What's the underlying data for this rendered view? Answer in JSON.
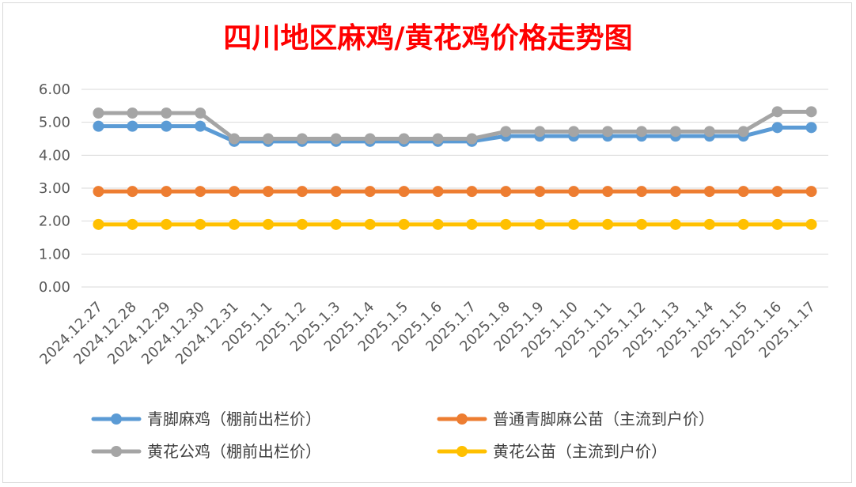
{
  "chart_data": {
    "type": "line",
    "title": "四川地区麻鸡/黄花鸡价格走势图",
    "title_color": "#ff0000",
    "categories": [
      "2024.12.27",
      "2024.12.28",
      "2024.12.29",
      "2024.12.30",
      "2024.12.31",
      "2025.1.1",
      "2025.1.2",
      "2025.1.3",
      "2025.1.4",
      "2025.1.5",
      "2025.1.6",
      "2025.1.7",
      "2025.1.8",
      "2025.1.9",
      "2025.1.10",
      "2025.1.11",
      "2025.1.12",
      "2025.1.13",
      "2025.1.14",
      "2025.1.15",
      "2025.1.16",
      "2025.1.17"
    ],
    "y_ticks": [
      "0.00",
      "1.00",
      "2.00",
      "3.00",
      "4.00",
      "5.00",
      "6.00"
    ],
    "ylim": [
      0,
      6
    ],
    "grid": true,
    "legend_position": "bottom",
    "series": [
      {
        "name": "青脚麻鸡（棚前出栏价）",
        "color": "#5b9bd5",
        "values": [
          4.88,
          4.88,
          4.88,
          4.88,
          4.42,
          4.42,
          4.42,
          4.42,
          4.42,
          4.42,
          4.42,
          4.42,
          4.58,
          4.58,
          4.58,
          4.58,
          4.58,
          4.58,
          4.58,
          4.58,
          4.84,
          4.84
        ]
      },
      {
        "name": "普通青脚麻公苗（主流到户价）",
        "color": "#ed7d31",
        "values": [
          2.9,
          2.9,
          2.9,
          2.9,
          2.9,
          2.9,
          2.9,
          2.9,
          2.9,
          2.9,
          2.9,
          2.9,
          2.9,
          2.9,
          2.9,
          2.9,
          2.9,
          2.9,
          2.9,
          2.9,
          2.9,
          2.9
        ]
      },
      {
        "name": "黄花公鸡（棚前出栏价）",
        "color": "#a5a5a5",
        "values": [
          5.28,
          5.28,
          5.28,
          5.28,
          4.5,
          4.5,
          4.5,
          4.5,
          4.5,
          4.5,
          4.5,
          4.5,
          4.72,
          4.72,
          4.72,
          4.72,
          4.72,
          4.72,
          4.72,
          4.72,
          5.32,
          5.32
        ]
      },
      {
        "name": "黄花公苗（主流到户价）",
        "color": "#ffc000",
        "values": [
          1.9,
          1.9,
          1.9,
          1.9,
          1.9,
          1.9,
          1.9,
          1.9,
          1.9,
          1.9,
          1.9,
          1.9,
          1.9,
          1.9,
          1.9,
          1.9,
          1.9,
          1.9,
          1.9,
          1.9,
          1.9,
          1.9
        ]
      }
    ]
  }
}
